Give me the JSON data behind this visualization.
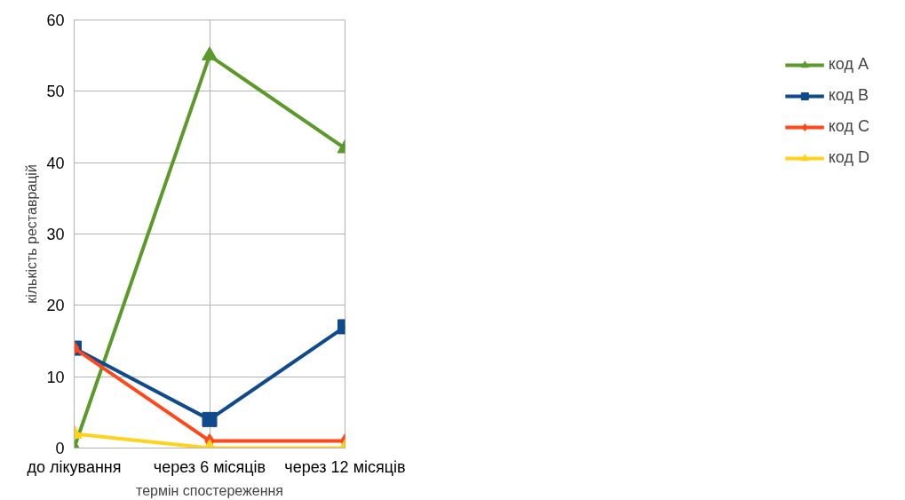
{
  "chart_data": {
    "type": "line",
    "xlabel": "термін спостереження",
    "ylabel": "кількість реставрацій",
    "categories": [
      "до лікування",
      "через 6 місяців",
      "через 12 місяців"
    ],
    "ylim": [
      0,
      60
    ],
    "yticks": [
      0,
      10,
      20,
      30,
      40,
      50,
      60
    ],
    "grid": true,
    "legend": "right",
    "line_style": "solid",
    "series": [
      {
        "name": "код A",
        "color": "#5b9a2a",
        "marker": "triangle",
        "values": [
          0,
          55,
          42
        ]
      },
      {
        "name": "код B",
        "color": "#0e4a8c",
        "marker": "square",
        "values": [
          14,
          4,
          17
        ]
      },
      {
        "name": "код C",
        "color": "#ff4719",
        "marker": "diamond",
        "values": [
          14,
          1,
          1
        ]
      },
      {
        "name": "код D",
        "color": "#ffd21c",
        "marker": "triangle",
        "values": [
          2,
          0,
          0
        ]
      }
    ]
  }
}
